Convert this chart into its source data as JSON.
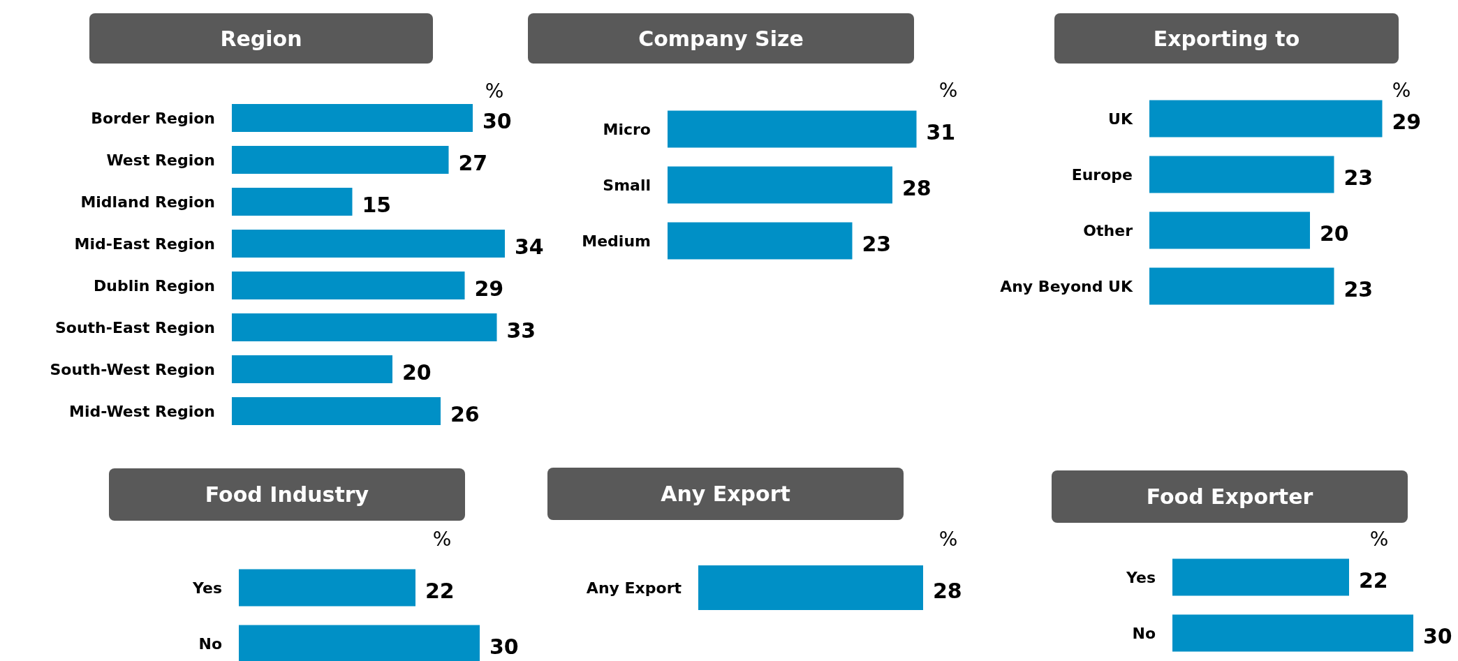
{
  "chart_data": [
    {
      "type": "bar",
      "orientation": "horizontal",
      "title": "Region",
      "categories": [
        "Border Region",
        "West Region",
        "Midland Region",
        "Mid-East Region",
        "Dublin Region",
        "South-East Region",
        "South-West Region",
        "Mid-West Region"
      ],
      "values": [
        30,
        27,
        15,
        34,
        29,
        33,
        20,
        26
      ],
      "color": "#0090c6",
      "data_labels": true,
      "annotations": [
        "%"
      ]
    },
    {
      "type": "bar",
      "orientation": "horizontal",
      "title": "Company Size",
      "categories": [
        "Micro",
        "Small",
        "Medium"
      ],
      "values": [
        31,
        28,
        23
      ],
      "color": "#0090c6",
      "data_labels": true,
      "annotations": [
        "%"
      ]
    },
    {
      "type": "bar",
      "orientation": "horizontal",
      "title": "Exporting to",
      "categories": [
        "UK",
        "Europe",
        "Other",
        "Any Beyond UK"
      ],
      "values": [
        29,
        23,
        20,
        23
      ],
      "color": "#0090c6",
      "data_labels": true,
      "annotations": [
        "%"
      ]
    },
    {
      "type": "bar",
      "orientation": "horizontal",
      "title": "Food Industry",
      "categories": [
        "Yes",
        "No"
      ],
      "values": [
        22,
        30
      ],
      "color": "#0090c6",
      "data_labels": true,
      "annotations": [
        "%"
      ]
    },
    {
      "type": "bar",
      "orientation": "horizontal",
      "title": "Any Export",
      "categories": [
        "Any Export"
      ],
      "values": [
        28
      ],
      "color": "#0090c6",
      "data_labels": true,
      "annotations": [
        "%"
      ]
    },
    {
      "type": "bar",
      "orientation": "horizontal",
      "title": "Food Exporter",
      "categories": [
        "Yes",
        "No"
      ],
      "values": [
        22,
        30
      ],
      "color": "#0090c6",
      "data_labels": true,
      "annotations": [
        "%"
      ]
    }
  ]
}
